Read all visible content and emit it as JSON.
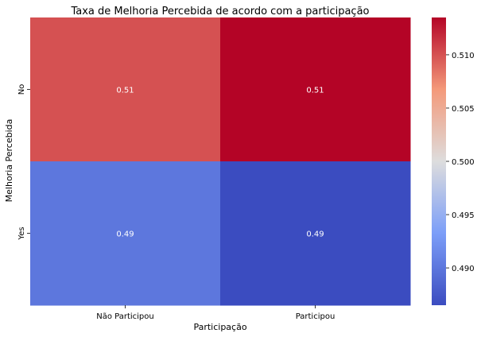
{
  "chart_data": {
    "type": "heatmap",
    "title": "Taxa de Melhoria Percebida de acordo com a participação",
    "xlabel": "Participação",
    "ylabel": "Melhoria Percebida",
    "x_categories": [
      "Não Participou",
      "Participou"
    ],
    "y_categories": [
      "No",
      "Yes"
    ],
    "values": [
      [
        0.51,
        0.5135
      ],
      [
        0.49,
        0.4865
      ]
    ],
    "annotations": [
      [
        "0.51",
        "0.51"
      ],
      [
        "0.49",
        "0.49"
      ]
    ],
    "colormap": "coolwarm",
    "colorbar": {
      "range": [
        0.4865,
        0.5135
      ],
      "ticks": [
        0.49,
        0.495,
        0.5,
        0.505,
        0.51
      ],
      "tick_labels": [
        "0.490",
        "0.495",
        "0.500",
        "0.505",
        "0.510"
      ]
    },
    "colors": {
      "low": "#3b4cc0",
      "mid": "#dddddd",
      "high": "#b40426",
      "annotation_text": "#ffffff",
      "text": "#000000"
    }
  }
}
